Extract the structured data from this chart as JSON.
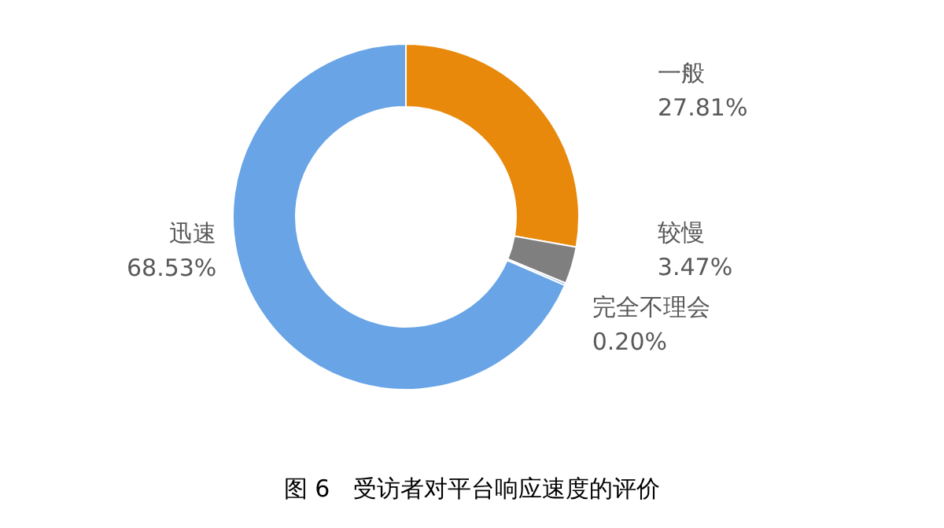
{
  "chart_data": {
    "type": "donut",
    "title": "图 6　受访者对平台响应速度的评价",
    "categories": [
      "一般",
      "较慢",
      "完全不理会",
      "迅速"
    ],
    "values": [
      27.81,
      3.47,
      0.2,
      68.53
    ],
    "value_labels": [
      "27.81%",
      "3.47%",
      "0.20%",
      "68.53%"
    ],
    "colors": [
      "#e8890c",
      "#7f7f7f",
      "#4472c4",
      "#68a4e6"
    ]
  }
}
